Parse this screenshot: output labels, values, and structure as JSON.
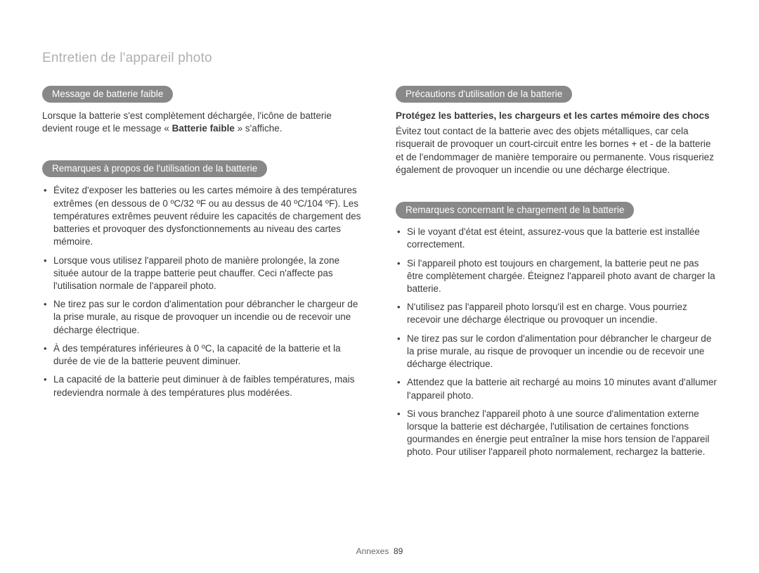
{
  "page": {
    "title": "Entretien de l'appareil photo",
    "footer_label": "Annexes",
    "footer_page": "89"
  },
  "left": {
    "section1": {
      "heading": "Message de batterie faible",
      "para_pre": "Lorsque la batterie s'est complètement déchargée, l'icône de batterie devient rouge et le message « ",
      "para_bold": "Batterie faible",
      "para_post": " » s'affiche."
    },
    "section2": {
      "heading": "Remarques à propos de l'utilisation de la batterie",
      "items": [
        "Évitez d'exposer les batteries ou les cartes mémoire à des températures extrêmes (en dessous de 0 ºC/32 ºF ou au dessus de 40 ºC/104 ºF). Les températures extrêmes peuvent réduire les capacités de chargement des batteries et provoquer des dysfonctionnements au niveau des cartes mémoire.",
        "Lorsque vous utilisez l'appareil photo de manière prolongée, la zone située autour de la trappe batterie peut chauffer. Ceci n'affecte pas l'utilisation normale de l'appareil photo.",
        "Ne tirez pas sur le cordon d'alimentation pour débrancher le chargeur de la prise murale, au risque de provoquer un incendie ou de recevoir une décharge électrique.",
        "À des températures inférieures à 0 ºC, la capacité de la batterie et la durée de vie de la batterie peuvent diminuer.",
        "La capacité de la batterie peut diminuer à de faibles températures, mais redeviendra normale à des températures plus modérées."
      ]
    }
  },
  "right": {
    "section1": {
      "heading": "Précautions d'utilisation de la batterie",
      "subhead": "Protégez les batteries, les chargeurs et les cartes mémoire des chocs",
      "para": "Évitez tout contact de la batterie avec des objets métalliques, car cela risquerait de provoquer un court-circuit entre les bornes + et - de la batterie et de l'endommager de manière temporaire ou permanente. Vous risqueriez également de provoquer un incendie ou une décharge électrique."
    },
    "section2": {
      "heading": "Remarques concernant le chargement de la batterie",
      "items": [
        "Si le voyant d'état est éteint, assurez-vous que la batterie est installée correctement.",
        "Si l'appareil photo est toujours en chargement, la batterie peut ne pas être complètement chargée. Éteignez l'appareil photo avant de charger la batterie.",
        "N'utilisez pas l'appareil photo lorsqu'il est en charge. Vous pourriez recevoir une décharge électrique ou provoquer un incendie.",
        "Ne tirez pas sur le cordon d'alimentation pour débrancher le chargeur de la prise murale, au risque de provoquer un incendie ou de recevoir une décharge électrique.",
        "Attendez que la batterie ait rechargé au moins 10 minutes avant d'allumer l'appareil photo.",
        "Si vous branchez l'appareil photo à une source d'alimentation externe lorsque la batterie est déchargée, l'utilisation de certaines fonctions gourmandes en énergie peut entraîner la mise hors tension de l'appareil photo. Pour utiliser l'appareil photo normalement, rechargez la batterie."
      ]
    }
  }
}
